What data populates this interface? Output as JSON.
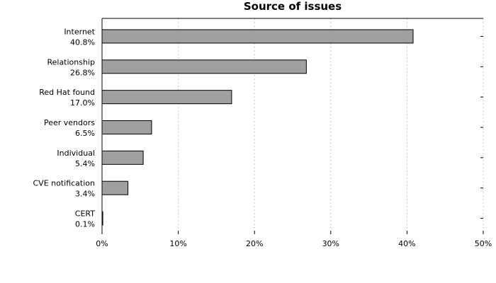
{
  "chart_data": {
    "type": "bar",
    "orientation": "horizontal",
    "title": "Source of issues",
    "xlabel": "",
    "ylabel": "",
    "xlim": [
      0,
      50
    ],
    "x_ticks": [
      "0%",
      "10%",
      "20%",
      "30%",
      "40%",
      "50%"
    ],
    "grid": true,
    "bar_color": "#a0a0a0",
    "categories": [
      "Internet",
      "Relationship",
      "Red Hat found",
      "Peer vendors",
      "Individual",
      "CVE notification",
      "CERT"
    ],
    "value_labels": [
      "40.8%",
      "26.8%",
      "17.0%",
      "6.5%",
      "5.4%",
      "3.4%",
      "0.1%"
    ],
    "values": [
      40.8,
      26.8,
      17.0,
      6.5,
      5.4,
      3.4,
      0.1
    ]
  }
}
